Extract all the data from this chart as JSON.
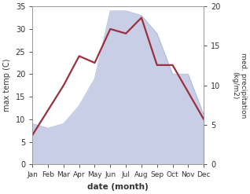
{
  "months": [
    "Jan",
    "Feb",
    "Mar",
    "Apr",
    "May",
    "Jun",
    "Jul",
    "Aug",
    "Sep",
    "Oct",
    "Nov",
    "Dec"
  ],
  "month_positions": [
    0,
    1,
    2,
    3,
    4,
    5,
    6,
    7,
    8,
    9,
    10,
    11
  ],
  "temperature": [
    6.5,
    12.0,
    17.5,
    24.0,
    22.5,
    30.0,
    29.0,
    32.5,
    22.0,
    22.0,
    16.0,
    10.0
  ],
  "precipitation_left_scale": [
    9.0,
    8.0,
    9.0,
    13.0,
    19.0,
    34.0,
    34.0,
    33.0,
    29.0,
    20.0,
    20.0,
    11.0
  ],
  "temp_color": "#9B3040",
  "precip_fill_color": "#aab4d8",
  "precip_alpha": 0.65,
  "temp_ylim": [
    0,
    35
  ],
  "precip_ylim": [
    0,
    20
  ],
  "xlabel": "date (month)",
  "ylabel_left": "max temp (C)",
  "ylabel_right": "med. precipitation\n(kg/m2)",
  "left_ticks": [
    0,
    5,
    10,
    15,
    20,
    25,
    30,
    35
  ],
  "right_ticks": [
    0,
    5,
    10,
    15,
    20
  ],
  "bg_color": "#ffffff",
  "temp_linewidth": 1.6,
  "spine_color": "#999999"
}
